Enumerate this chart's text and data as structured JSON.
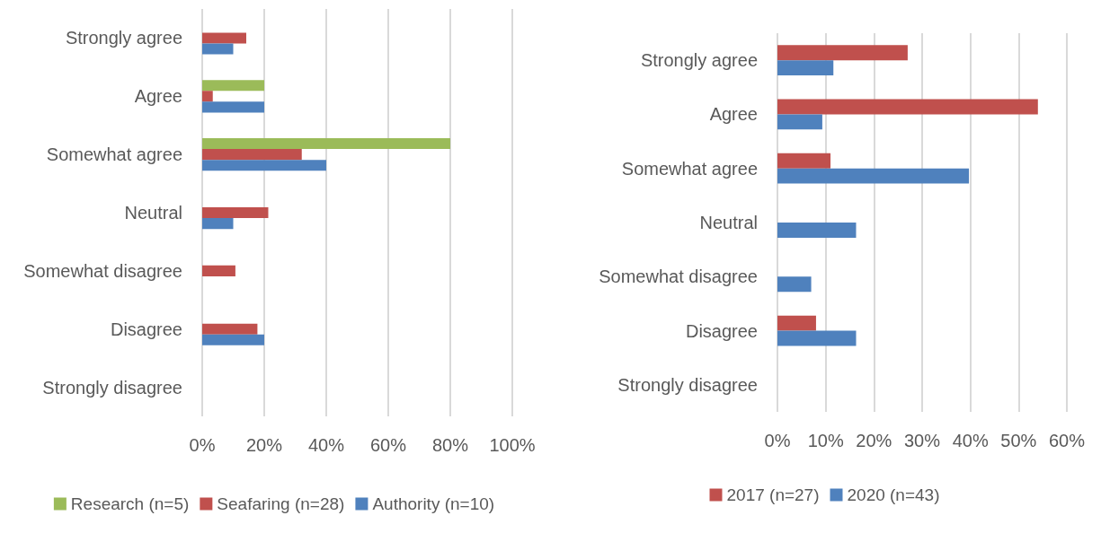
{
  "chart_data": [
    {
      "type": "bar",
      "orientation": "horizontal",
      "categories": [
        "Strongly agree",
        "Agree",
        "Somewhat agree",
        "Neutral",
        "Somewhat disagree",
        "Disagree",
        "Strongly disagree"
      ],
      "series": [
        {
          "name": "Research (n=5)",
          "color": "#9bbb59",
          "values": [
            0,
            20,
            80,
            0,
            0,
            0,
            0
          ]
        },
        {
          "name": "Seafaring (n=28)",
          "color": "#c0504d",
          "values": [
            14.2,
            3.4,
            32.1,
            21.3,
            10.7,
            17.8,
            0
          ]
        },
        {
          "name": "Authority (n=10)",
          "color": "#4f81bd",
          "values": [
            10,
            20,
            40,
            10,
            0,
            20,
            0
          ]
        }
      ],
      "xlim": [
        0,
        100
      ],
      "xticks": [
        {
          "value": 0,
          "label": "0%"
        },
        {
          "value": 20,
          "label": "20%"
        },
        {
          "value": 40,
          "label": "40%"
        },
        {
          "value": 60,
          "label": "60%"
        },
        {
          "value": 80,
          "label": "80%"
        },
        {
          "value": 100,
          "label": "100%"
        }
      ],
      "grid": "x",
      "legend": "bottom"
    },
    {
      "type": "bar",
      "orientation": "horizontal",
      "categories": [
        "Strongly agree",
        "Agree",
        "Somewhat agree",
        "Neutral",
        "Somewhat disagree",
        "Disagree",
        "Strongly disagree"
      ],
      "series": [
        {
          "name": "2017 (n=27)",
          "color": "#c0504d",
          "values": [
            27,
            54,
            11,
            0,
            0,
            8,
            0
          ]
        },
        {
          "name": "2020 (n=43)",
          "color": "#4f81bd",
          "values": [
            11.6,
            9.3,
            39.7,
            16.3,
            7.0,
            16.3,
            0
          ]
        }
      ],
      "xlim": [
        0,
        60
      ],
      "xticks": [
        {
          "value": 0,
          "label": "0%"
        },
        {
          "value": 10,
          "label": "10%"
        },
        {
          "value": 20,
          "label": "20%"
        },
        {
          "value": 30,
          "label": "30%"
        },
        {
          "value": 40,
          "label": "40%"
        },
        {
          "value": 50,
          "label": "50%"
        },
        {
          "value": 60,
          "label": "60%"
        }
      ],
      "grid": "x",
      "legend": "bottom"
    }
  ]
}
